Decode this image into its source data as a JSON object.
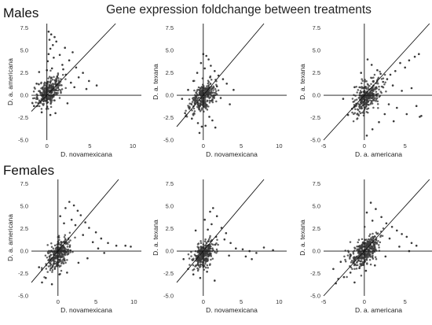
{
  "figure": {
    "title": "Gene expression foldchange between treatments",
    "row_labels": [
      "Males",
      "Females"
    ]
  },
  "chart_data": [
    {
      "type": "scatter",
      "group": "Males",
      "xlabel": "D. novamexicana",
      "ylabel": "D. a. americana",
      "xlim": [
        -1.8,
        11
      ],
      "ylim": [
        -5,
        8
      ],
      "xticks": [
        0,
        5,
        10
      ],
      "yticks": [
        -5.0,
        -2.5,
        0.0,
        2.5,
        5.0,
        7.5
      ],
      "reference_lines": [
        "x=0",
        "y=0",
        "y=x"
      ],
      "points": [
        [
          0.2,
          7.1
        ],
        [
          0.5,
          6.8
        ],
        [
          0.9,
          6.5
        ],
        [
          0.3,
          6.2
        ],
        [
          1.1,
          6.0
        ],
        [
          0.7,
          5.6
        ],
        [
          2.1,
          5.3
        ],
        [
          0.4,
          5.2
        ],
        [
          3.0,
          4.8
        ],
        [
          1.5,
          4.5
        ],
        [
          0.8,
          4.2
        ],
        [
          2.6,
          3.9
        ],
        [
          0.1,
          3.8
        ],
        [
          1.8,
          3.4
        ],
        [
          3.4,
          3.1
        ],
        [
          0.6,
          3.0
        ],
        [
          4.2,
          2.5
        ],
        [
          2.2,
          2.3
        ],
        [
          3.7,
          2.0
        ],
        [
          1.2,
          2.1
        ],
        [
          4.9,
          1.6
        ],
        [
          2.8,
          1.4
        ],
        [
          -0.9,
          2.6
        ],
        [
          -1.2,
          1.3
        ],
        [
          0.0,
          2.8
        ],
        [
          5.8,
          1.1
        ],
        [
          3.2,
          0.9
        ],
        [
          -0.6,
          -1.9
        ],
        [
          -1.5,
          -1.2
        ],
        [
          0.4,
          -2.2
        ],
        [
          1.0,
          -2.0
        ],
        [
          2.4,
          -0.9
        ],
        [
          -1.1,
          -0.4
        ],
        [
          1.9,
          2.9
        ],
        [
          0.2,
          4.6
        ],
        [
          4.6,
          0.7
        ]
      ],
      "cloud": {
        "center": [
          0.25,
          0.45
        ],
        "spread": [
          0.85,
          0.8
        ],
        "n": 300
      }
    },
    {
      "type": "scatter",
      "group": "Males",
      "xlabel": "D. novamexicana",
      "ylabel": "D. a. texana",
      "xlim": [
        -3.5,
        11
      ],
      "ylim": [
        -5,
        8
      ],
      "xticks": [
        0,
        5,
        10
      ],
      "yticks": [
        -5.0,
        -2.5,
        0.0,
        2.5,
        5.0,
        7.5
      ],
      "reference_lines": [
        "x=0",
        "y=0",
        "y=x"
      ],
      "points": [
        [
          0.0,
          4.6
        ],
        [
          0.4,
          4.4
        ],
        [
          0.7,
          4.0
        ],
        [
          -0.3,
          3.6
        ],
        [
          1.0,
          3.3
        ],
        [
          0.2,
          3.0
        ],
        [
          1.5,
          2.7
        ],
        [
          -0.8,
          2.5
        ],
        [
          2.0,
          2.2
        ],
        [
          0.9,
          2.0
        ],
        [
          2.6,
          1.8
        ],
        [
          -1.3,
          1.6
        ],
        [
          3.1,
          1.3
        ],
        [
          1.8,
          1.0
        ],
        [
          -2.0,
          0.6
        ],
        [
          4.0,
          0.6
        ],
        [
          -1.8,
          -1.4
        ],
        [
          -2.4,
          -2.0
        ],
        [
          -0.7,
          -3.1
        ],
        [
          -0.2,
          -3.5
        ],
        [
          0.3,
          -3.4
        ],
        [
          1.2,
          -2.8
        ],
        [
          -1.5,
          -2.6
        ],
        [
          0.8,
          -2.4
        ],
        [
          2.3,
          -0.3
        ],
        [
          -2.8,
          -0.4
        ],
        [
          3.5,
          -1.0
        ],
        [
          1.6,
          -3.6
        ],
        [
          -0.5,
          -4.2
        ]
      ],
      "cloud": {
        "center": [
          0.0,
          -0.2
        ],
        "spread": [
          0.85,
          0.8
        ],
        "n": 300
      }
    },
    {
      "type": "scatter",
      "group": "Males",
      "xlabel": "D. a. americana",
      "ylabel": "D. a. texana",
      "xlim": [
        -5,
        8.5
      ],
      "ylim": [
        -5,
        8
      ],
      "xticks": [
        -5,
        0,
        5
      ],
      "yticks": [
        -5.0,
        -2.5,
        0.0,
        2.5,
        5.0,
        7.5
      ],
      "reference_lines": [
        "x=0",
        "y=0",
        "y=x"
      ],
      "points": [
        [
          6.7,
          4.6
        ],
        [
          6.2,
          4.3
        ],
        [
          5.5,
          3.9
        ],
        [
          5.0,
          3.1
        ],
        [
          4.4,
          3.6
        ],
        [
          3.8,
          2.7
        ],
        [
          3.2,
          2.3
        ],
        [
          2.8,
          1.8
        ],
        [
          2.3,
          1.5
        ],
        [
          0.4,
          4.0
        ],
        [
          0.9,
          3.4
        ],
        [
          1.6,
          2.8
        ],
        [
          -0.4,
          2.5
        ],
        [
          2.0,
          2.4
        ],
        [
          3.5,
          1.1
        ],
        [
          4.6,
          0.5
        ],
        [
          5.8,
          0.8
        ],
        [
          6.4,
          -1.2
        ],
        [
          7.0,
          -2.3
        ],
        [
          5.2,
          -2.1
        ],
        [
          4.0,
          -1.4
        ],
        [
          3.0,
          -1.0
        ],
        [
          2.5,
          -2.1
        ],
        [
          1.8,
          -3.0
        ],
        [
          1.0,
          -3.8
        ],
        [
          0.3,
          -4.5
        ],
        [
          -1.5,
          -1.5
        ],
        [
          -2.0,
          -2.2
        ],
        [
          -1.2,
          0.9
        ],
        [
          -2.6,
          -0.4
        ],
        [
          6.8,
          -2.4
        ],
        [
          3.6,
          -2.9
        ]
      ],
      "cloud": {
        "center": [
          0.35,
          -0.15
        ],
        "spread": [
          0.85,
          0.85
        ],
        "n": 300
      }
    },
    {
      "type": "scatter",
      "group": "Females",
      "xlabel": "D. novamexicana",
      "ylabel": "D. a. americana",
      "xlim": [
        -3.5,
        11
      ],
      "ylim": [
        -5,
        8
      ],
      "xticks": [
        0,
        5,
        10
      ],
      "yticks": [
        -5.0,
        -2.5,
        0.0,
        2.5,
        5.0,
        7.5
      ],
      "reference_lines": [
        "x=0",
        "y=0",
        "y=x"
      ],
      "points": [
        [
          1.5,
          5.5
        ],
        [
          2.1,
          5.1
        ],
        [
          1.0,
          4.8
        ],
        [
          2.6,
          4.5
        ],
        [
          3.0,
          4.0
        ],
        [
          0.3,
          3.9
        ],
        [
          1.8,
          3.5
        ],
        [
          3.6,
          3.2
        ],
        [
          2.3,
          2.9
        ],
        [
          4.1,
          2.6
        ],
        [
          0.8,
          3.1
        ],
        [
          5.0,
          2.1
        ],
        [
          3.3,
          1.8
        ],
        [
          5.7,
          1.4
        ],
        [
          4.6,
          1.0
        ],
        [
          6.6,
          0.9
        ],
        [
          7.7,
          0.6
        ],
        [
          8.9,
          0.6
        ],
        [
          5.3,
          0.3
        ],
        [
          6.1,
          -0.2
        ],
        [
          3.9,
          -0.8
        ],
        [
          2.7,
          -1.3
        ],
        [
          -1.6,
          -3.0
        ],
        [
          -2.1,
          -3.5
        ],
        [
          -0.8,
          -3.7
        ],
        [
          0.2,
          -2.6
        ],
        [
          -2.5,
          -1.8
        ],
        [
          1.2,
          -2.4
        ],
        [
          9.6,
          0.5
        ]
      ],
      "cloud": {
        "center": [
          0.15,
          -0.3
        ],
        "spread": [
          0.85,
          0.85
        ],
        "n": 300
      }
    },
    {
      "type": "scatter",
      "group": "Females",
      "xlabel": "D. novamexicana",
      "ylabel": "D. a. texana",
      "xlim": [
        -3.5,
        11
      ],
      "ylim": [
        -5,
        8
      ],
      "xticks": [
        0,
        5,
        10
      ],
      "yticks": [
        -5.0,
        -2.5,
        0.0,
        2.5,
        5.0,
        7.5
      ],
      "reference_lines": [
        "x=0",
        "y=0",
        "y=x"
      ],
      "points": [
        [
          1.3,
          4.8
        ],
        [
          0.9,
          4.4
        ],
        [
          1.8,
          3.9
        ],
        [
          0.2,
          3.5
        ],
        [
          1.1,
          3.0
        ],
        [
          2.4,
          2.6
        ],
        [
          0.6,
          2.4
        ],
        [
          3.0,
          2.0
        ],
        [
          -1.0,
          2.3
        ],
        [
          1.7,
          1.6
        ],
        [
          2.8,
          1.3
        ],
        [
          3.6,
          0.9
        ],
        [
          4.3,
          0.3
        ],
        [
          5.2,
          0.2
        ],
        [
          6.1,
          0.0
        ],
        [
          7.0,
          -0.2
        ],
        [
          8.0,
          0.4
        ],
        [
          9.2,
          0.1
        ],
        [
          5.6,
          -0.6
        ],
        [
          3.4,
          -0.5
        ],
        [
          -2.0,
          -2.0
        ],
        [
          -1.3,
          -2.6
        ],
        [
          -0.4,
          -3.0
        ],
        [
          0.5,
          -2.3
        ],
        [
          1.5,
          -3.3
        ],
        [
          -2.6,
          -0.9
        ],
        [
          6.4,
          -0.9
        ]
      ],
      "cloud": {
        "center": [
          0.0,
          -0.3
        ],
        "spread": [
          0.8,
          0.8
        ],
        "n": 300
      }
    },
    {
      "type": "scatter",
      "group": "Females",
      "xlabel": "D. a. americana",
      "ylabel": "D. a. texana",
      "xlim": [
        -5,
        8.5
      ],
      "ylim": [
        -5,
        8
      ],
      "xticks": [
        -5,
        0,
        5
      ],
      "yticks": [
        -5.0,
        -2.5,
        0.0,
        2.5,
        5.0,
        7.5
      ],
      "reference_lines": [
        "x=0",
        "y=0",
        "y=x"
      ],
      "points": [
        [
          0.8,
          5.4
        ],
        [
          1.4,
          4.7
        ],
        [
          0.3,
          4.3
        ],
        [
          2.1,
          3.8
        ],
        [
          1.0,
          3.4
        ],
        [
          2.7,
          3.1
        ],
        [
          3.4,
          2.7
        ],
        [
          4.0,
          2.3
        ],
        [
          4.6,
          1.9
        ],
        [
          5.2,
          1.6
        ],
        [
          3.1,
          1.4
        ],
        [
          5.8,
          0.9
        ],
        [
          4.3,
          0.5
        ],
        [
          5.5,
          0.0
        ],
        [
          2.6,
          -0.6
        ],
        [
          -1.7,
          -2.4
        ],
        [
          -2.5,
          -2.9
        ],
        [
          -3.2,
          -3.1
        ],
        [
          -1.2,
          -3.5
        ],
        [
          0.2,
          -2.2
        ],
        [
          -3.8,
          -2.0
        ],
        [
          -2.9,
          -1.2
        ],
        [
          1.3,
          -1.6
        ],
        [
          -0.6,
          -1.9
        ],
        [
          6.4,
          0.6
        ],
        [
          -3.5,
          -3.6
        ]
      ],
      "cloud": {
        "center": [
          0.05,
          0.0
        ],
        "spread": [
          0.95,
          0.85
        ],
        "n": 350
      }
    }
  ]
}
